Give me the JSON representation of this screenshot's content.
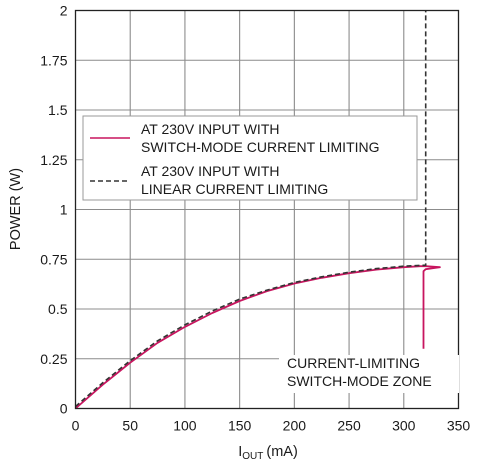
{
  "chart_data": {
    "type": "line",
    "xlabel_main": "I",
    "xlabel_sub": "OUT",
    "xlabel_unit": "(mA)",
    "ylabel": "POWER (W)",
    "xlim": [
      0,
      350
    ],
    "ylim": [
      0,
      2
    ],
    "x_ticks": [
      "0",
      "50",
      "100",
      "150",
      "200",
      "250",
      "300",
      "350"
    ],
    "y_ticks": [
      "0",
      "0.25",
      "0.5",
      "0.75",
      "1",
      "1.25",
      "1.5",
      "1.75",
      "2"
    ],
    "grid": true,
    "series": [
      {
        "name_lines": [
          "AT 230V INPUT WITH",
          "SWITCH-MODE CURRENT LIMITING"
        ],
        "color": "#c8155f",
        "style": "solid",
        "x": [
          0,
          25,
          50,
          75,
          100,
          125,
          150,
          175,
          200,
          225,
          250,
          275,
          300,
          315,
          320,
          328,
          333,
          328,
          320,
          318,
          318
        ],
        "y": [
          0.0,
          0.12,
          0.23,
          0.33,
          0.41,
          0.48,
          0.54,
          0.59,
          0.628,
          0.657,
          0.68,
          0.698,
          0.71,
          0.715,
          0.715,
          0.712,
          0.71,
          0.706,
          0.7,
          0.69,
          0.3
        ]
      },
      {
        "name_lines": [
          "AT 230V INPUT WITH",
          "LINEAR CURRENT LIMITING"
        ],
        "color": "#333333",
        "style": "dashed",
        "x": [
          0,
          25,
          50,
          75,
          100,
          125,
          150,
          175,
          200,
          225,
          250,
          275,
          300,
          320,
          320
        ],
        "y": [
          0.01,
          0.13,
          0.24,
          0.34,
          0.42,
          0.49,
          0.55,
          0.595,
          0.633,
          0.662,
          0.685,
          0.703,
          0.715,
          0.72,
          2.0
        ]
      }
    ],
    "annotation": [
      "CURRENT-LIMITING",
      "SWITCH-MODE ZONE"
    ]
  }
}
